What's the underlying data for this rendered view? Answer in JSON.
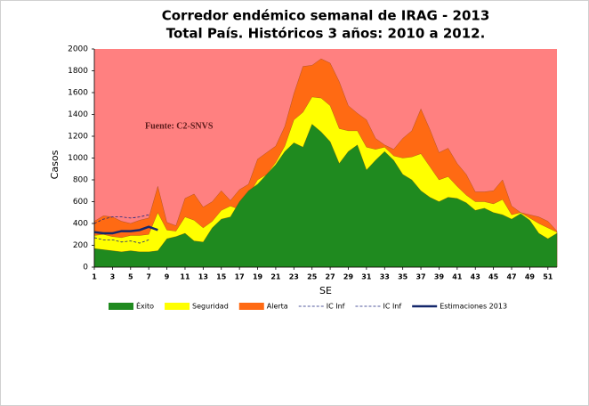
{
  "chart_data": {
    "type": "corridor",
    "title": "Corredor endémico semanal de IRAG - 2013",
    "subtitle": "Total País. Históricos 3 años: 2010 a 2012.",
    "annotation": "Fuente: C2-SNVS",
    "x_label": "SE",
    "y_label": "Casos",
    "background_color": "#ff8080",
    "x": [
      1,
      2,
      3,
      4,
      5,
      6,
      7,
      8,
      9,
      10,
      11,
      12,
      13,
      14,
      15,
      16,
      17,
      18,
      19,
      20,
      21,
      22,
      23,
      24,
      25,
      26,
      27,
      28,
      29,
      30,
      31,
      32,
      33,
      34,
      35,
      36,
      37,
      38,
      39,
      40,
      41,
      42,
      43,
      44,
      45,
      46,
      47,
      48,
      49,
      50,
      51,
      52
    ],
    "xlim": [
      1,
      52
    ],
    "xticks": [
      1,
      3,
      5,
      7,
      9,
      11,
      13,
      15,
      17,
      19,
      21,
      23,
      25,
      27,
      29,
      31,
      33,
      35,
      37,
      39,
      41,
      43,
      45,
      47,
      49,
      51
    ],
    "ylim": [
      0,
      2000
    ],
    "yticks": [
      0,
      200,
      400,
      600,
      800,
      1000,
      1200,
      1400,
      1600,
      1800,
      2000
    ],
    "legend": "bottom",
    "series": [
      {
        "name": "Éxito",
        "kind": "area",
        "color": "#1f8a1f",
        "values": [
          170,
          160,
          150,
          140,
          150,
          140,
          140,
          150,
          260,
          280,
          310,
          240,
          230,
          360,
          440,
          460,
          600,
          700,
          760,
          850,
          940,
          1060,
          1140,
          1100,
          1310,
          1240,
          1150,
          950,
          1060,
          1120,
          890,
          980,
          1060,
          980,
          850,
          800,
          700,
          640,
          600,
          640,
          630,
          590,
          520,
          540,
          500,
          480,
          440,
          490,
          430,
          310,
          260,
          310
        ]
      },
      {
        "name": "Seguridad",
        "kind": "area",
        "color": "#ffff00",
        "values": [
          290,
          300,
          280,
          270,
          290,
          290,
          300,
          500,
          340,
          330,
          460,
          430,
          360,
          420,
          520,
          560,
          530,
          660,
          800,
          850,
          960,
          1110,
          1350,
          1420,
          1560,
          1550,
          1480,
          1270,
          1250,
          1250,
          1100,
          1080,
          1100,
          1020,
          1000,
          1010,
          1040,
          920,
          800,
          830,
          740,
          660,
          600,
          600,
          580,
          620,
          480,
          500,
          450,
          400,
          360,
          320
        ]
      },
      {
        "name": "Alerta",
        "kind": "area",
        "color": "#ff6a13",
        "values": [
          420,
          470,
          460,
          420,
          400,
          430,
          450,
          740,
          410,
          380,
          630,
          670,
          550,
          600,
          700,
          610,
          710,
          760,
          990,
          1050,
          1110,
          1290,
          1590,
          1840,
          1850,
          1910,
          1870,
          1700,
          1480,
          1410,
          1350,
          1180,
          1120,
          1080,
          1180,
          1250,
          1450,
          1260,
          1050,
          1090,
          950,
          850,
          690,
          690,
          700,
          800,
          560,
          500,
          480,
          460,
          420,
          330
        ]
      },
      {
        "name": "IC Inf",
        "kind": "line",
        "dash": true,
        "color": "#1a237e",
        "values": [
          400,
          440,
          460,
          460,
          450,
          460,
          480,
          null,
          null,
          null,
          null,
          null,
          null,
          null,
          null,
          null,
          null,
          null,
          null,
          null,
          null,
          null,
          null,
          null,
          null,
          null,
          null,
          null,
          null,
          null,
          null,
          null,
          null,
          null,
          null,
          null,
          null,
          null,
          null,
          null,
          null,
          null,
          null,
          null,
          null,
          null,
          null,
          null,
          null,
          null,
          null,
          null
        ]
      },
      {
        "name": "IC Inf",
        "kind": "line",
        "dash": true,
        "color": "#1a237e",
        "values": [
          270,
          250,
          250,
          230,
          240,
          220,
          250,
          null,
          null,
          null,
          null,
          null,
          null,
          null,
          null,
          null,
          null,
          null,
          null,
          null,
          null,
          null,
          null,
          null,
          null,
          null,
          null,
          null,
          null,
          null,
          null,
          null,
          null,
          null,
          null,
          null,
          null,
          null,
          null,
          null,
          null,
          null,
          null,
          null,
          null,
          null,
          null,
          null,
          null,
          null,
          null,
          null
        ]
      },
      {
        "name": "Estimaciones 2013",
        "kind": "line",
        "dash": false,
        "color": "#14276b",
        "values": [
          320,
          310,
          310,
          330,
          330,
          340,
          370,
          340,
          null,
          null,
          null,
          null,
          null,
          null,
          null,
          null,
          null,
          null,
          null,
          null,
          null,
          null,
          null,
          null,
          null,
          null,
          null,
          null,
          null,
          null,
          null,
          null,
          null,
          null,
          null,
          null,
          null,
          null,
          null,
          null,
          null,
          null,
          null,
          null,
          null,
          null,
          null,
          null,
          null,
          null,
          null,
          null
        ]
      }
    ]
  }
}
